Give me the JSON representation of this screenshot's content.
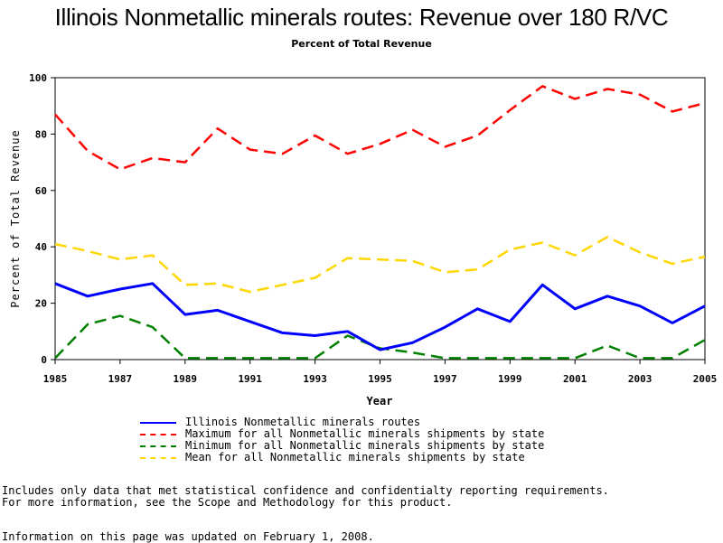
{
  "title": "Illinois Nonmetallic minerals routes: Revenue over 180 R/VC",
  "subtitle": "Percent of Total Revenue",
  "chart_data": {
    "type": "line",
    "xlabel": "Year",
    "ylabel": "Percent of Total Revenue",
    "xlim": [
      1985,
      2005
    ],
    "ylim": [
      0,
      100
    ],
    "x_ticks": [
      1985,
      1987,
      1989,
      1991,
      1993,
      1995,
      1997,
      1999,
      2001,
      2003,
      2005
    ],
    "y_ticks": [
      0,
      20,
      40,
      60,
      80,
      100
    ],
    "x": [
      1985,
      1986,
      1987,
      1988,
      1989,
      1990,
      1991,
      1992,
      1993,
      1994,
      1995,
      1996,
      1997,
      1998,
      1999,
      2000,
      2001,
      2002,
      2003,
      2004,
      2005
    ],
    "series": [
      {
        "name": "Illinois Nonmetallic minerals routes",
        "color": "#0000ff",
        "style": "solid",
        "values": [
          27,
          22.5,
          25,
          27,
          16,
          17.5,
          13.5,
          9.5,
          8.5,
          10,
          3.5,
          6,
          11.5,
          18,
          13.5,
          26.5,
          18,
          22.5,
          19,
          13,
          19
        ]
      },
      {
        "name": "Maximum for all Nonmetallic minerals shipments by state",
        "color": "#ff0000",
        "style": "dashed",
        "values": [
          87,
          74,
          67.5,
          71.5,
          70,
          82,
          74.5,
          73,
          79.5,
          73,
          76.5,
          81.5,
          75.5,
          79.5,
          88.5,
          97,
          92.5,
          96,
          94,
          88,
          91
        ]
      },
      {
        "name": "Minimum for all Nonmetallic minerals shipments by state",
        "color": "#008000",
        "style": "dashed",
        "values": [
          0.5,
          12.5,
          15.5,
          11.5,
          0.5,
          0.5,
          0.5,
          0.5,
          0.5,
          8.5,
          4,
          2.5,
          0.5,
          0.5,
          0.5,
          0.5,
          0.5,
          5,
          0.5,
          0.5,
          7
        ]
      },
      {
        "name": "Mean for all Nonmetallic minerals shipments by state",
        "color": "#ffd700",
        "style": "dashed",
        "values": [
          41,
          38.5,
          35.5,
          37,
          26.5,
          27,
          24,
          26.5,
          29,
          36,
          35.5,
          35,
          31,
          32,
          39,
          41.5,
          37,
          43.5,
          38,
          34,
          36.5
        ]
      }
    ],
    "legend_position": "bottom",
    "grid": false
  },
  "footnotes": [
    "Includes only data that met statistical confidence and confidentialty reporting requirements.",
    "For more information, see the Scope and Methodology for this product.",
    "Information on this page was updated on February 1, 2008."
  ]
}
